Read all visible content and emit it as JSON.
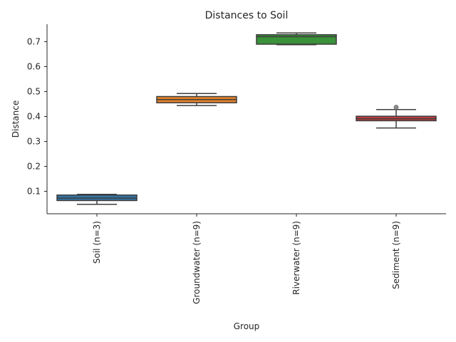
{
  "chart_data": {
    "type": "box",
    "title": "Distances to Soil",
    "xlabel": "Group",
    "ylabel": "Distance",
    "ylim": [
      0.01,
      0.77
    ],
    "yticks": [
      0.1,
      0.2,
      0.3,
      0.4,
      0.5,
      0.6,
      0.7
    ],
    "grid": false,
    "categories": [
      "Soil (n=3)",
      "Groundwater (n=9)",
      "Riverwater (n=9)",
      "Sediment (n=9)"
    ],
    "boxes": [
      {
        "category": "Soil (n=3)",
        "color": "#3274a1",
        "min": 0.048,
        "q1": 0.063,
        "median": 0.073,
        "q3": 0.085,
        "max": 0.088,
        "outliers": []
      },
      {
        "category": "Groundwater (n=9)",
        "color": "#e1812c",
        "min": 0.444,
        "q1": 0.455,
        "median": 0.468,
        "q3": 0.48,
        "max": 0.492,
        "outliers": []
      },
      {
        "category": "Riverwater (n=9)",
        "color": "#3a923a",
        "min": 0.688,
        "q1": 0.69,
        "median": 0.72,
        "q3": 0.728,
        "max": 0.735,
        "outliers": []
      },
      {
        "category": "Sediment (n=9)",
        "color": "#c03d3e",
        "min": 0.354,
        "q1": 0.383,
        "median": 0.391,
        "q3": 0.401,
        "max": 0.428,
        "outliers": [
          0.437
        ]
      }
    ]
  }
}
